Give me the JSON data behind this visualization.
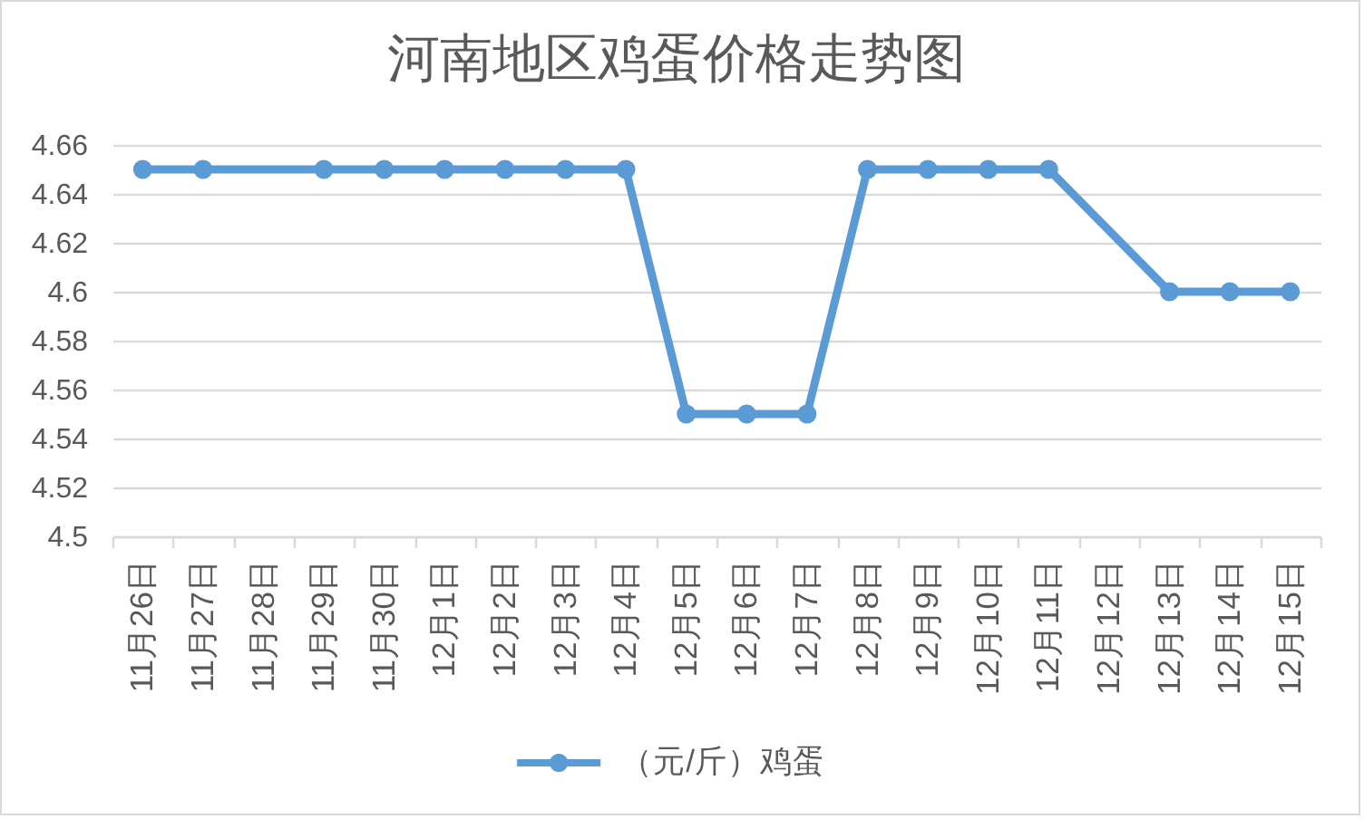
{
  "chart_data": {
    "type": "line",
    "title": "河南地区鸡蛋价格走势图",
    "categories": [
      "11月26日",
      "11月27日",
      "11月28日",
      "11月29日",
      "11月30日",
      "12月1日",
      "12月2日",
      "12月3日",
      "12月4日",
      "12月5日",
      "12月6日",
      "12月7日",
      "12月8日",
      "12月9日",
      "12月10日",
      "12月11日",
      "12月12日",
      "12月13日",
      "12月14日",
      "12月15日"
    ],
    "series": [
      {
        "name": "（元/斤）鸡蛋",
        "color": "#5b9bd5",
        "values": [
          4.65,
          4.65,
          null,
          4.65,
          4.65,
          4.65,
          4.65,
          4.65,
          4.65,
          4.55,
          4.55,
          4.55,
          4.65,
          4.65,
          4.65,
          4.65,
          null,
          4.6,
          4.6,
          4.6
        ]
      }
    ],
    "ylim": [
      4.5,
      4.66
    ],
    "yticks": [
      4.5,
      4.52,
      4.54,
      4.56,
      4.58,
      4.6,
      4.62,
      4.64,
      4.66
    ],
    "grid": "y",
    "legend": "bottom",
    "marker": "circle",
    "line_style": "solid"
  }
}
